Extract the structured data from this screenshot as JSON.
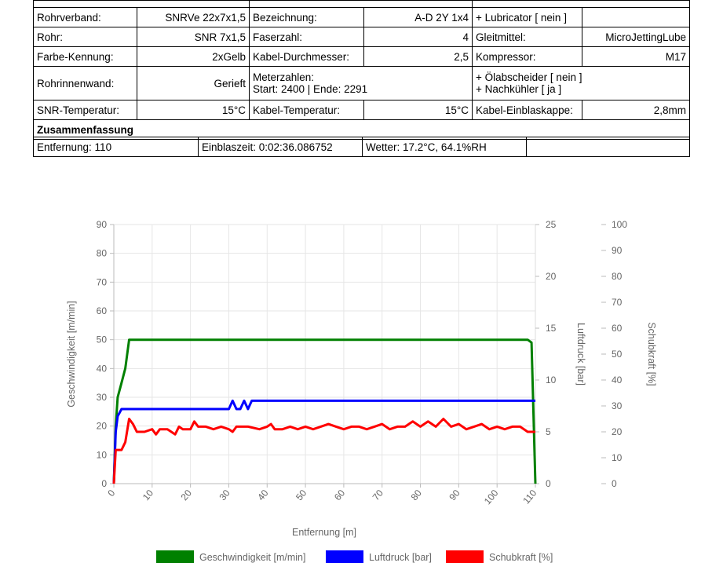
{
  "table": {
    "row0": {
      "c1": "",
      "c2": "",
      "c3": ""
    },
    "row1": {
      "l1": "Rohrverband:",
      "v1": "SNRVe 22x7x1,5",
      "l2": "Bezeichnung:",
      "v2": "A-D 2Y 1x4",
      "l3": "+ Lubricator [ nein ]",
      "v3": ""
    },
    "row2": {
      "l1": "Rohr:",
      "v1": "SNR 7x1,5",
      "l2": "Faserzahl:",
      "v2": "4",
      "l3": "Gleitmittel:",
      "v3": "MicroJettingLube"
    },
    "row3": {
      "l1": "Farbe-Kennung:",
      "v1": "2xGelb",
      "l2": "Kabel-Durchmesser:",
      "v2": "2,5",
      "l3": "Kompressor:",
      "v3": "M17"
    },
    "row4": {
      "l1": "Rohrinnenwand:",
      "v1": "Gerieft",
      "l2a": "Meterzahlen:",
      "l2b": "Start: 2400 | Ende: 2291",
      "l3a": "+ Ölabscheider [ nein ]",
      "l3b": "+ Nachkühler [ ja ]"
    },
    "row5": {
      "l1": "SNR-Temperatur:",
      "v1": "15°C",
      "l2": "Kabel-Temperatur:",
      "v2": "15°C",
      "l3": "Kabel-Einblaskappe:",
      "v3": "2,8mm"
    },
    "summary_title": "Zusammenfassung",
    "summary": {
      "distance": "Entfernung: 110",
      "time": "Einblaszeit: 0:02:36.086752",
      "weather": "Wetter: 17.2°C, 64.1%RH",
      "empty": ""
    }
  },
  "chart_data": {
    "type": "line",
    "xlabel": "Entfernung [m]",
    "ylabel_left": "Geschwindigkeit [m/min]",
    "ylabel_right1": "Luftdruck [bar]",
    "ylabel_right2": "Schubkraft [%]",
    "xlim": [
      0,
      110
    ],
    "ylim_left": [
      0,
      90
    ],
    "ylim_right1": [
      0,
      25
    ],
    "ylim_right2": [
      0,
      100
    ],
    "x_ticks": [
      0,
      10,
      20,
      30,
      40,
      50,
      60,
      70,
      80,
      90,
      100,
      110
    ],
    "y_ticks_left": [
      0,
      10,
      20,
      30,
      40,
      50,
      60,
      70,
      80,
      90
    ],
    "y_ticks_right1": [
      0,
      5,
      10,
      15,
      20,
      25
    ],
    "y_ticks_right2": [
      0,
      10,
      20,
      30,
      40,
      50,
      60,
      70,
      80,
      90,
      100
    ],
    "grid": true,
    "legend_position": "bottom",
    "series": [
      {
        "name": "Geschwindigkeit [m/min]",
        "axis": "left",
        "color": "#008000",
        "points": [
          [
            0,
            0
          ],
          [
            0.5,
            20
          ],
          [
            1,
            30
          ],
          [
            2,
            35
          ],
          [
            3,
            40
          ],
          [
            4,
            50
          ],
          [
            5,
            50
          ],
          [
            10,
            50
          ],
          [
            20,
            50
          ],
          [
            30,
            50
          ],
          [
            40,
            50
          ],
          [
            50,
            50
          ],
          [
            60,
            50
          ],
          [
            70,
            50
          ],
          [
            80,
            50
          ],
          [
            90,
            50
          ],
          [
            100,
            50
          ],
          [
            108,
            50
          ],
          [
            109,
            49
          ],
          [
            110,
            0
          ]
        ]
      },
      {
        "name": "Luftdruck [bar]",
        "axis": "right1",
        "color": "#0000ff",
        "points": [
          [
            0,
            0
          ],
          [
            0.5,
            5
          ],
          [
            1,
            6.5
          ],
          [
            2,
            7.2
          ],
          [
            3,
            7.2
          ],
          [
            10,
            7.2
          ],
          [
            20,
            7.2
          ],
          [
            29,
            7.2
          ],
          [
            30,
            7.2
          ],
          [
            31,
            8
          ],
          [
            32,
            7.2
          ],
          [
            33,
            7.2
          ],
          [
            34,
            8
          ],
          [
            35,
            7.2
          ],
          [
            36,
            8
          ],
          [
            37,
            8
          ],
          [
            38,
            8
          ],
          [
            50,
            8
          ],
          [
            60,
            8
          ],
          [
            70,
            8
          ],
          [
            80,
            8
          ],
          [
            90,
            8
          ],
          [
            100,
            8
          ],
          [
            110,
            8
          ]
        ]
      },
      {
        "name": "Schubkraft [%]",
        "axis": "right2",
        "color": "#ff0000",
        "points": [
          [
            0,
            0
          ],
          [
            0.5,
            13
          ],
          [
            2,
            13
          ],
          [
            3,
            16
          ],
          [
            4,
            25
          ],
          [
            5,
            23
          ],
          [
            6,
            20
          ],
          [
            8,
            20
          ],
          [
            10,
            21
          ],
          [
            11,
            19
          ],
          [
            12,
            21
          ],
          [
            14,
            21
          ],
          [
            15,
            20
          ],
          [
            16,
            19
          ],
          [
            17,
            22
          ],
          [
            18,
            21
          ],
          [
            20,
            21
          ],
          [
            21,
            24
          ],
          [
            22,
            22
          ],
          [
            24,
            22
          ],
          [
            26,
            21
          ],
          [
            28,
            22
          ],
          [
            30,
            21
          ],
          [
            31,
            20
          ],
          [
            32,
            22
          ],
          [
            35,
            22
          ],
          [
            38,
            21
          ],
          [
            40,
            22
          ],
          [
            41,
            23
          ],
          [
            42,
            21
          ],
          [
            44,
            21
          ],
          [
            46,
            22
          ],
          [
            48,
            21
          ],
          [
            50,
            22
          ],
          [
            52,
            21
          ],
          [
            54,
            22
          ],
          [
            56,
            23
          ],
          [
            58,
            22
          ],
          [
            60,
            21
          ],
          [
            62,
            22
          ],
          [
            64,
            22
          ],
          [
            66,
            21
          ],
          [
            68,
            22
          ],
          [
            70,
            23
          ],
          [
            72,
            21
          ],
          [
            74,
            22
          ],
          [
            76,
            22
          ],
          [
            78,
            24
          ],
          [
            80,
            22
          ],
          [
            82,
            24
          ],
          [
            84,
            22
          ],
          [
            86,
            25
          ],
          [
            88,
            22
          ],
          [
            90,
            23
          ],
          [
            92,
            21
          ],
          [
            94,
            22
          ],
          [
            96,
            23
          ],
          [
            98,
            21
          ],
          [
            100,
            22
          ],
          [
            102,
            21
          ],
          [
            104,
            22
          ],
          [
            106,
            22
          ],
          [
            108,
            20
          ],
          [
            110,
            20
          ]
        ]
      }
    ]
  }
}
